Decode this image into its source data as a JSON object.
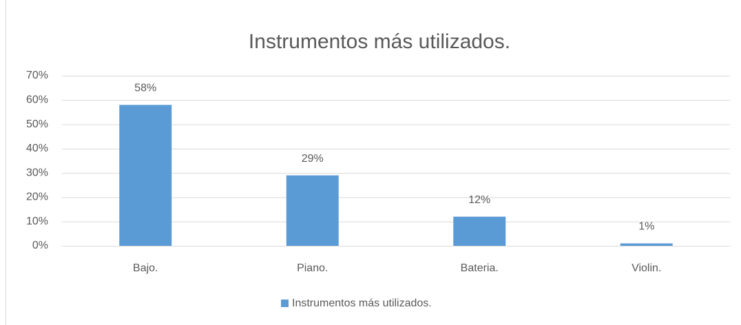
{
  "chart_data": {
    "type": "bar",
    "title": "Instrumentos más utilizados.",
    "categories": [
      "Bajo.",
      "Piano.",
      "Bateria.",
      "Violin."
    ],
    "series": [
      {
        "name": "Instrumentos más utilizados.",
        "color": "#5b9bd5",
        "values": [
          58,
          29,
          12,
          1
        ],
        "value_labels": [
          "58%",
          "29%",
          "12%",
          "1%"
        ]
      }
    ],
    "ylim": [
      0,
      70
    ],
    "yticks": [
      {
        "value": 0,
        "label": "0%"
      },
      {
        "value": 10,
        "label": "10%"
      },
      {
        "value": 20,
        "label": "20%"
      },
      {
        "value": 30,
        "label": "30%"
      },
      {
        "value": 40,
        "label": "40%"
      },
      {
        "value": 50,
        "label": "50%"
      },
      {
        "value": 60,
        "label": "60%"
      },
      {
        "value": 70,
        "label": "70%"
      }
    ],
    "grid": true,
    "legend": "bottom"
  }
}
